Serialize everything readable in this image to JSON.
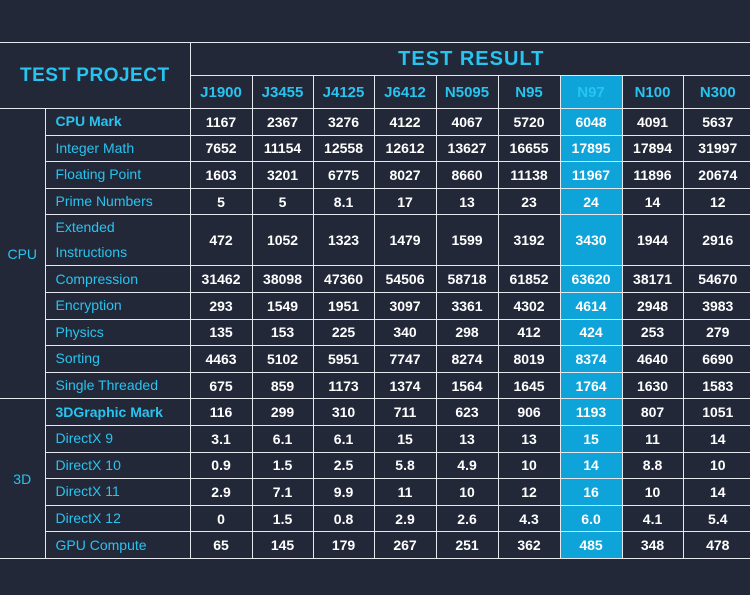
{
  "chart_data": {
    "type": "table",
    "header_left": "TEST PROJECT",
    "header_right": "TEST RESULT",
    "columns": [
      "J1900",
      "J3455",
      "J4125",
      "J6412",
      "N5095",
      "N95",
      "N97",
      "N100",
      "N300"
    ],
    "highlight_column": "N97",
    "accent_color": "#27c4f0",
    "highlight_color": "#0ea4da",
    "background_color": "#232839",
    "groups": [
      {
        "name": "CPU",
        "rows": [
          {
            "label": "CPU Mark",
            "bold": true,
            "values": [
              "1167",
              "2367",
              "3276",
              "4122",
              "4067",
              "5720",
              "6048",
              "4091",
              "5637"
            ]
          },
          {
            "label": "Integer Math",
            "values": [
              "7652",
              "11154",
              "12558",
              "12612",
              "13627",
              "16655",
              "17895",
              "17894",
              "31997"
            ]
          },
          {
            "label": "Floating Point",
            "values": [
              "1603",
              "3201",
              "6775",
              "8027",
              "8660",
              "11138",
              "11967",
              "11896",
              "20674"
            ]
          },
          {
            "label": "Prime Numbers",
            "values": [
              "5",
              "5",
              "8.1",
              "17",
              "13",
              "23",
              "24",
              "14",
              "12"
            ]
          },
          {
            "label": "Extended Instructions",
            "tall": true,
            "values": [
              "472",
              "1052",
              "1323",
              "1479",
              "1599",
              "3192",
              "3430",
              "1944",
              "2916"
            ]
          },
          {
            "label": "Compression",
            "values": [
              "31462",
              "38098",
              "47360",
              "54506",
              "58718",
              "61852",
              "63620",
              "38171",
              "54670"
            ]
          },
          {
            "label": "Encryption",
            "values": [
              "293",
              "1549",
              "1951",
              "3097",
              "3361",
              "4302",
              "4614",
              "2948",
              "3983"
            ]
          },
          {
            "label": "Physics",
            "values": [
              "135",
              "153",
              "225",
              "340",
              "298",
              "412",
              "424",
              "253",
              "279"
            ]
          },
          {
            "label": "Sorting",
            "values": [
              "4463",
              "5102",
              "5951",
              "7747",
              "8274",
              "8019",
              "8374",
              "4640",
              "6690"
            ]
          },
          {
            "label": "Single Threaded",
            "values": [
              "675",
              "859",
              "1173",
              "1374",
              "1564",
              "1645",
              "1764",
              "1630",
              "1583"
            ]
          }
        ]
      },
      {
        "name": "3D",
        "rows": [
          {
            "label": "3DGraphic Mark",
            "bold": true,
            "values": [
              "116",
              "299",
              "310",
              "711",
              "623",
              "906",
              "1193",
              "807",
              "1051"
            ]
          },
          {
            "label": "DirectX 9",
            "values": [
              "3.1",
              "6.1",
              "6.1",
              "15",
              "13",
              "13",
              "15",
              "11",
              "14"
            ]
          },
          {
            "label": "DirectX 10",
            "values": [
              "0.9",
              "1.5",
              "2.5",
              "5.8",
              "4.9",
              "10",
              "14",
              "8.8",
              "10"
            ]
          },
          {
            "label": "DirectX 11",
            "values": [
              "2.9",
              "7.1",
              "9.9",
              "11",
              "10",
              "12",
              "16",
              "10",
              "14"
            ]
          },
          {
            "label": "DirectX 12",
            "values": [
              "0",
              "1.5",
              "0.8",
              "2.9",
              "2.6",
              "4.3",
              "6.0",
              "4.1",
              "5.4"
            ]
          },
          {
            "label": "GPU Compute",
            "values": [
              "65",
              "145",
              "179",
              "267",
              "251",
              "362",
              "485",
              "348",
              "478"
            ]
          }
        ]
      }
    ]
  }
}
